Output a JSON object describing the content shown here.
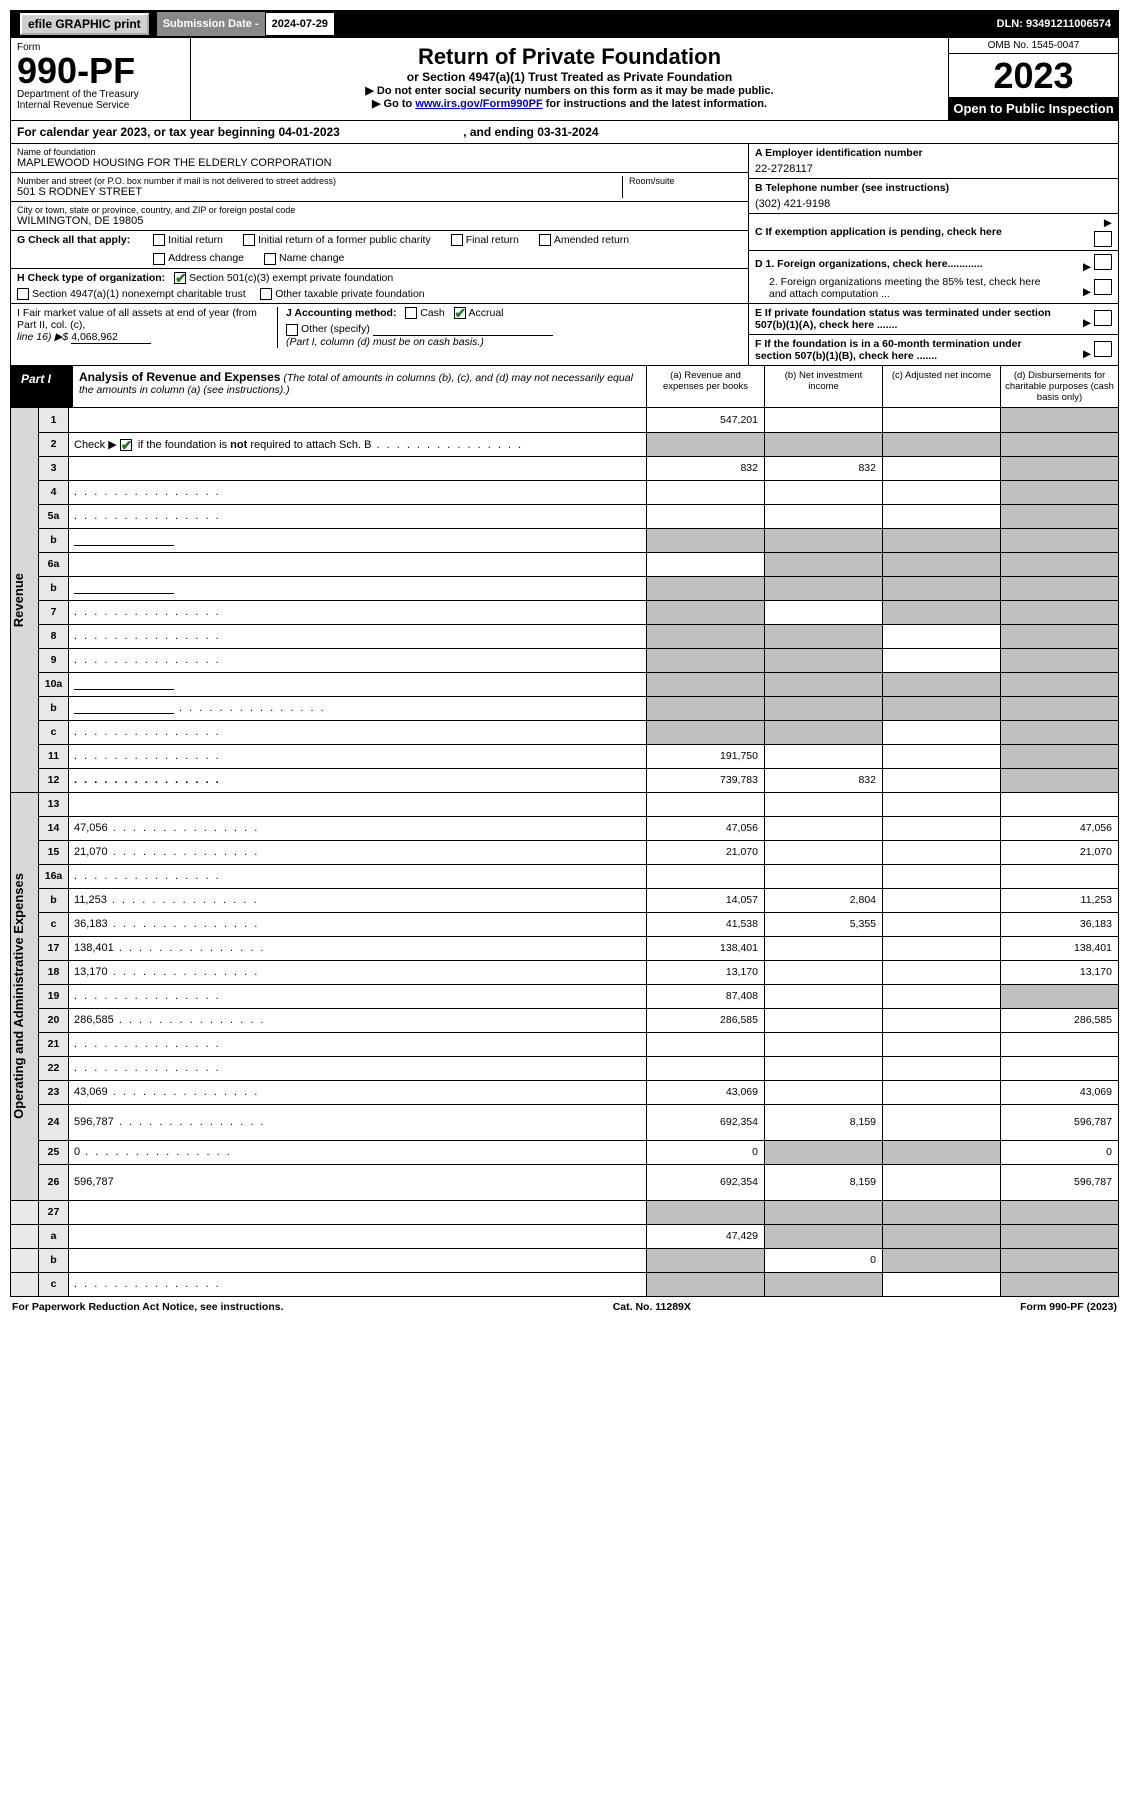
{
  "topbar": {
    "efile": "efile GRAPHIC print",
    "subdate_label": "Submission Date - ",
    "subdate_value": "2024-07-29",
    "dln": "DLN: 93491211006574"
  },
  "header": {
    "form_word": "Form",
    "form_no": "990-PF",
    "dept": "Department of the Treasury",
    "irs": "Internal Revenue Service",
    "title": "Return of Private Foundation",
    "subtitle": "or Section 4947(a)(1) Trust Treated as Private Foundation",
    "note1": "▶ Do not enter social security numbers on this form as it may be made public.",
    "note2_pre": "▶ Go to ",
    "note2_link": "www.irs.gov/Form990PF",
    "note2_post": " for instructions and the latest information.",
    "omb": "OMB No. 1545-0047",
    "year": "2023",
    "open": "Open to Public Inspection"
  },
  "calyear": {
    "text_a": "For calendar year 2023, or tax year beginning ",
    "begin": "04-01-2023",
    "text_b": " , and ending ",
    "end": "03-31-2024"
  },
  "id": {
    "name_lbl": "Name of foundation",
    "name_val": "MAPLEWOOD HOUSING FOR THE ELDERLY CORPORATION",
    "addr_lbl": "Number and street (or P.O. box number if mail is not delivered to street address)",
    "addr_val": "501 S RODNEY STREET",
    "room_lbl": "Room/suite",
    "city_lbl": "City or town, state or province, country, and ZIP or foreign postal code",
    "city_val": "WILMINGTON, DE  19805",
    "a_lbl": "A Employer identification number",
    "a_val": "22-2728117",
    "b_lbl": "B Telephone number (see instructions)",
    "b_val": "(302) 421-9198",
    "c_lbl": "C If exemption application is pending, check here",
    "d1_lbl": "D 1. Foreign organizations, check here............",
    "d2_lbl": "2. Foreign organizations meeting the 85% test, check here and attach computation ...",
    "e_lbl": "E If private foundation status was terminated under section 507(b)(1)(A), check here .......",
    "f_lbl": "F If the foundation is in a 60-month termination under section 507(b)(1)(B), check here .......",
    "g_lbl": "G Check all that apply:",
    "g_opts": [
      "Initial return",
      "Initial return of a former public charity",
      "Final return",
      "Amended return",
      "Address change",
      "Name change"
    ],
    "h_lbl": "H Check type of organization:",
    "h1": "Section 501(c)(3) exempt private foundation",
    "h2": "Section 4947(a)(1) nonexempt charitable trust",
    "h3": "Other taxable private foundation",
    "i_lbl_a": "I Fair market value of all assets at end of year (from Part II, col. (c),",
    "i_lbl_b": "line 16) ▶$ ",
    "i_val": "4,068,962",
    "j_lbl": "J Accounting method:",
    "j_cash": "Cash",
    "j_accr": "Accrual",
    "j_other": "Other (specify)",
    "j_note": "(Part I, column (d) must be on cash basis.)"
  },
  "part1": {
    "tag": "Part I",
    "title": "Analysis of Revenue and Expenses",
    "note": " (The total of amounts in columns (b), (c), and (d) may not necessarily equal the amounts in column (a) (see instructions).)",
    "cols": {
      "a": "(a) Revenue and expenses per books",
      "b": "(b) Net investment income",
      "c": "(c) Adjusted net income",
      "d": "(d) Disbursements for charitable purposes (cash basis only)"
    }
  },
  "side": {
    "rev": "Revenue",
    "op": "Operating and Administrative Expenses"
  },
  "rows": [
    {
      "sec": "rev",
      "n": "1",
      "d": "",
      "a": "547,201",
      "b": "",
      "c": "",
      "ga": false,
      "gb": false,
      "gc": false,
      "gd": true
    },
    {
      "sec": "rev",
      "n": "2",
      "d": "",
      "a": "",
      "b": "",
      "c": "",
      "ga": true,
      "gb": true,
      "gc": true,
      "gd": true,
      "chk": true,
      "dots": true
    },
    {
      "sec": "rev",
      "n": "3",
      "d": "",
      "a": "832",
      "b": "832",
      "c": "",
      "gd": true
    },
    {
      "sec": "rev",
      "n": "4",
      "d": "",
      "a": "",
      "b": "",
      "c": "",
      "gd": true,
      "dots": true
    },
    {
      "sec": "rev",
      "n": "5a",
      "d": "",
      "a": "",
      "b": "",
      "c": "",
      "gd": true,
      "dots": true
    },
    {
      "sec": "rev",
      "n": "b",
      "d": "",
      "a": "",
      "b": "",
      "c": "",
      "sub": true,
      "ga": true,
      "gb": true,
      "gc": true,
      "gd": true
    },
    {
      "sec": "rev",
      "n": "6a",
      "d": "",
      "a": "",
      "b": "",
      "c": "",
      "gb": true,
      "gc": true,
      "gd": true
    },
    {
      "sec": "rev",
      "n": "b",
      "d": "",
      "a": "",
      "b": "",
      "c": "",
      "sub": true,
      "ga": true,
      "gb": true,
      "gc": true,
      "gd": true
    },
    {
      "sec": "rev",
      "n": "7",
      "d": "",
      "a": "",
      "b": "",
      "c": "",
      "ga": true,
      "gc": true,
      "gd": true,
      "dots": true
    },
    {
      "sec": "rev",
      "n": "8",
      "d": "",
      "a": "",
      "b": "",
      "c": "",
      "ga": true,
      "gb": true,
      "gd": true,
      "dots": true
    },
    {
      "sec": "rev",
      "n": "9",
      "d": "",
      "a": "",
      "b": "",
      "c": "",
      "ga": true,
      "gb": true,
      "gd": true,
      "dots": true
    },
    {
      "sec": "rev",
      "n": "10a",
      "d": "",
      "a": "",
      "b": "",
      "c": "",
      "sub": true,
      "ga": true,
      "gb": true,
      "gc": true,
      "gd": true
    },
    {
      "sec": "rev",
      "n": "b",
      "d": "",
      "a": "",
      "b": "",
      "c": "",
      "sub": true,
      "ga": true,
      "gb": true,
      "gc": true,
      "gd": true,
      "dots": true
    },
    {
      "sec": "rev",
      "n": "c",
      "d": "",
      "a": "",
      "b": "",
      "c": "",
      "ga": true,
      "gb": true,
      "gd": true,
      "dots": true
    },
    {
      "sec": "rev",
      "n": "11",
      "d": "",
      "a": "191,750",
      "b": "",
      "c": "",
      "gd": true,
      "dots": true
    },
    {
      "sec": "rev",
      "n": "12",
      "d": "",
      "a": "739,783",
      "b": "832",
      "c": "",
      "gd": true,
      "dots": true,
      "bold": true
    },
    {
      "sec": "op",
      "n": "13",
      "d": "",
      "a": "",
      "b": "",
      "c": ""
    },
    {
      "sec": "op",
      "n": "14",
      "d": "47,056",
      "a": "47,056",
      "b": "",
      "c": "",
      "dots": true
    },
    {
      "sec": "op",
      "n": "15",
      "d": "21,070",
      "a": "21,070",
      "b": "",
      "c": "",
      "dots": true
    },
    {
      "sec": "op",
      "n": "16a",
      "d": "",
      "a": "",
      "b": "",
      "c": "",
      "dots": true
    },
    {
      "sec": "op",
      "n": "b",
      "d": "11,253",
      "a": "14,057",
      "b": "2,804",
      "c": "",
      "dots": true
    },
    {
      "sec": "op",
      "n": "c",
      "d": "36,183",
      "a": "41,538",
      "b": "5,355",
      "c": "",
      "dots": true
    },
    {
      "sec": "op",
      "n": "17",
      "d": "138,401",
      "a": "138,401",
      "b": "",
      "c": "",
      "dots": true
    },
    {
      "sec": "op",
      "n": "18",
      "d": "13,170",
      "a": "13,170",
      "b": "",
      "c": "",
      "dots": true
    },
    {
      "sec": "op",
      "n": "19",
      "d": "",
      "a": "87,408",
      "b": "",
      "c": "",
      "gd": true,
      "dots": true
    },
    {
      "sec": "op",
      "n": "20",
      "d": "286,585",
      "a": "286,585",
      "b": "",
      "c": "",
      "dots": true
    },
    {
      "sec": "op",
      "n": "21",
      "d": "",
      "a": "",
      "b": "",
      "c": "",
      "dots": true
    },
    {
      "sec": "op",
      "n": "22",
      "d": "",
      "a": "",
      "b": "",
      "c": "",
      "dots": true
    },
    {
      "sec": "op",
      "n": "23",
      "d": "43,069",
      "a": "43,069",
      "b": "",
      "c": "",
      "dots": true
    },
    {
      "sec": "op",
      "n": "24",
      "d": "596,787",
      "a": "692,354",
      "b": "8,159",
      "c": "",
      "dots": true,
      "tall": true
    },
    {
      "sec": "op",
      "n": "25",
      "d": "0",
      "a": "0",
      "b": "",
      "c": "",
      "gb": true,
      "gc": true,
      "dots": true
    },
    {
      "sec": "op",
      "n": "26",
      "d": "596,787",
      "a": "692,354",
      "b": "8,159",
      "c": "",
      "tall": true
    },
    {
      "sec": "end",
      "n": "27",
      "d": "",
      "a": "",
      "b": "",
      "c": "",
      "ga": true,
      "gb": true,
      "gc": true,
      "gd": true
    },
    {
      "sec": "end",
      "n": "a",
      "d": "",
      "a": "47,429",
      "b": "",
      "c": "",
      "gb": true,
      "gc": true,
      "gd": true
    },
    {
      "sec": "end",
      "n": "b",
      "d": "",
      "a": "",
      "b": "0",
      "c": "",
      "ga": true,
      "gc": true,
      "gd": true
    },
    {
      "sec": "end",
      "n": "c",
      "d": "",
      "a": "",
      "b": "",
      "c": "",
      "ga": true,
      "gb": true,
      "gd": true,
      "dots": true
    }
  ],
  "footer": {
    "left": "For Paperwork Reduction Act Notice, see instructions.",
    "mid": "Cat. No. 11289X",
    "right": "Form 990-PF (2023)"
  },
  "colors": {
    "link": "#0033cc",
    "check": "#1e7e1e",
    "grey_cell": "#c0c0c0",
    "lno_bg": "#e8e8e8",
    "side_bg": "#d8d8d8"
  }
}
